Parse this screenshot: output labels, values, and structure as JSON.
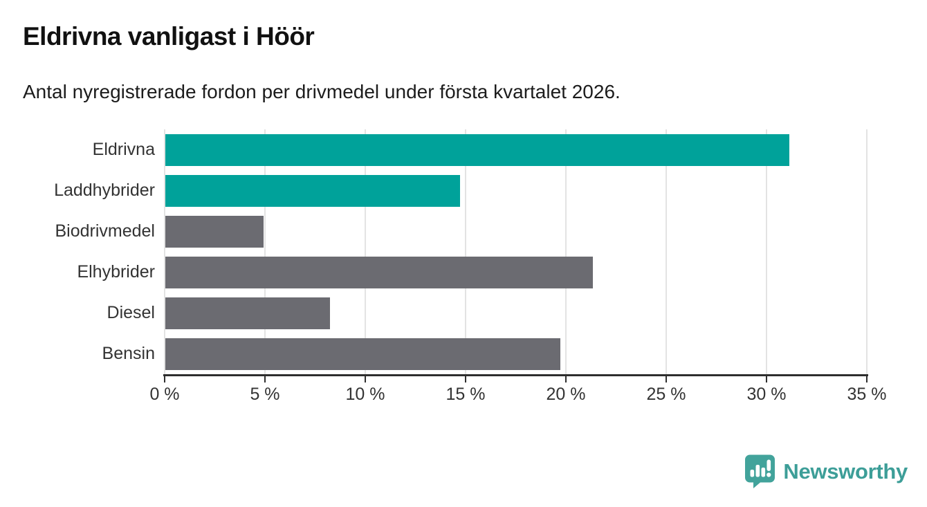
{
  "header": {
    "title": "Eldrivna vanligast i Höör",
    "subtitle": "Antal nyregistrerade fordon per drivmedel under första kvartalet 2026."
  },
  "chart_data": {
    "type": "bar",
    "orientation": "horizontal",
    "title": "Eldrivna vanligast i Höör",
    "subtitle": "Antal nyregistrerade fordon per drivmedel under första kvartalet 2026.",
    "categories": [
      "Eldrivna",
      "Laddhybrider",
      "Biodrivmedel",
      "Elhybrider",
      "Diesel",
      "Bensin"
    ],
    "values": [
      31.1,
      14.7,
      4.9,
      21.3,
      8.2,
      19.7
    ],
    "unit": "%",
    "bar_colors": [
      "#00a29a",
      "#00a29a",
      "#6b6b71",
      "#6b6b71",
      "#6b6b71",
      "#6b6b71"
    ],
    "xlabel": "",
    "ylabel": "",
    "xlim": [
      0,
      35
    ],
    "x_tick_values": [
      0,
      5,
      10,
      15,
      20,
      25,
      30,
      35
    ],
    "x_tick_labels": [
      "0 %",
      "5 %",
      "10 %",
      "15 %",
      "20 %",
      "25 %",
      "30 %",
      "35 %"
    ],
    "grid": true,
    "legend": false
  },
  "footer": {
    "brand": "Newsworthy"
  },
  "colors": {
    "accent_teal": "#00a29a",
    "bar_gray": "#6b6b71",
    "logo_teal": "#42a39b",
    "gridline": "#e3e3e3",
    "axis": "#2e2e2e"
  }
}
